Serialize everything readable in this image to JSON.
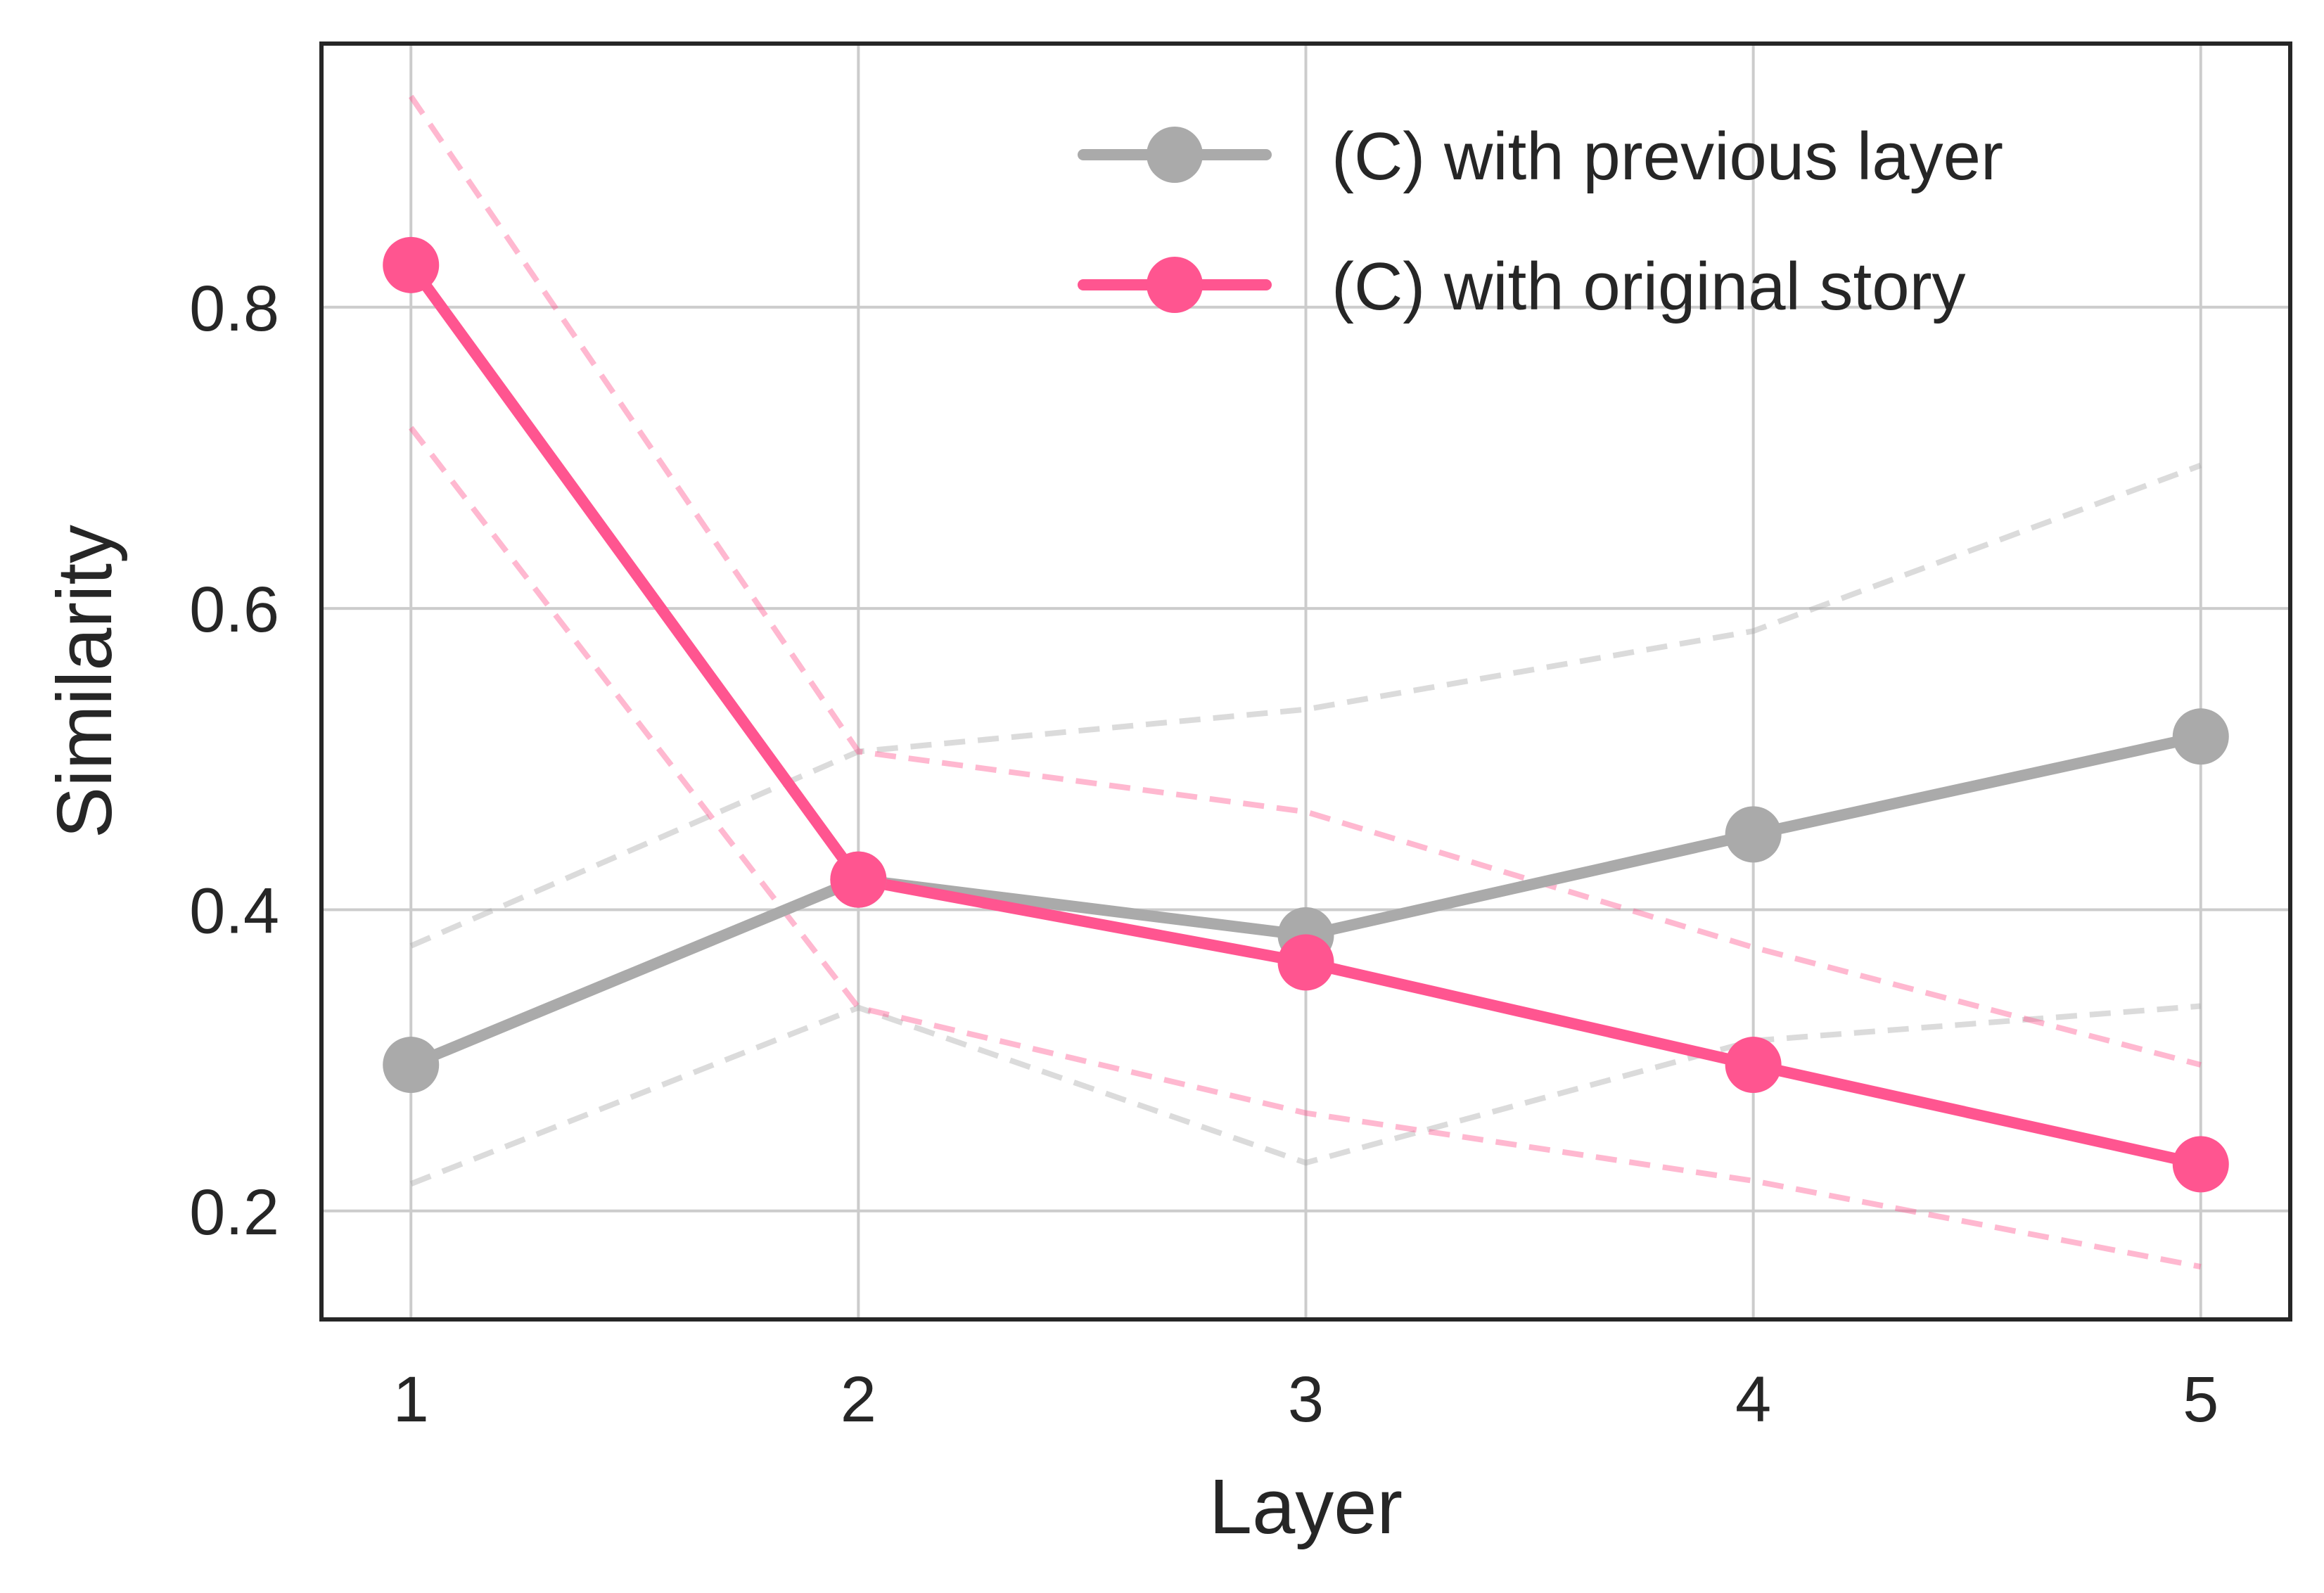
{
  "chart_data": {
    "type": "line",
    "xlabel": "Layer",
    "ylabel": "Similarity",
    "x": [
      1,
      2,
      3,
      4,
      5
    ],
    "xlim": [
      0.8,
      5.2
    ],
    "ylim": [
      0.128,
      0.975
    ],
    "xticks": [
      "1",
      "2",
      "3",
      "4",
      "5"
    ],
    "yticks": [
      "0.2",
      "0.4",
      "0.6",
      "0.8"
    ],
    "ytick_values": [
      0.2,
      0.4,
      0.6,
      0.8
    ],
    "grid": true,
    "legend_position": "top-right",
    "series": [
      {
        "name": "(C) with previous layer",
        "color": "#aaaaaa",
        "values": [
          0.297,
          0.42,
          0.383,
          0.45,
          0.515
        ],
        "upper": [
          0.376,
          0.505,
          0.533,
          0.585,
          0.695
        ],
        "lower": [
          0.218,
          0.335,
          0.232,
          0.313,
          0.336
        ]
      },
      {
        "name": "(C) with original story",
        "color": "#ff5590",
        "values": [
          0.828,
          0.42,
          0.365,
          0.297,
          0.231
        ],
        "upper": [
          0.94,
          0.505,
          0.465,
          0.375,
          0.297
        ],
        "lower": [
          0.72,
          0.335,
          0.265,
          0.22,
          0.163
        ]
      }
    ]
  }
}
